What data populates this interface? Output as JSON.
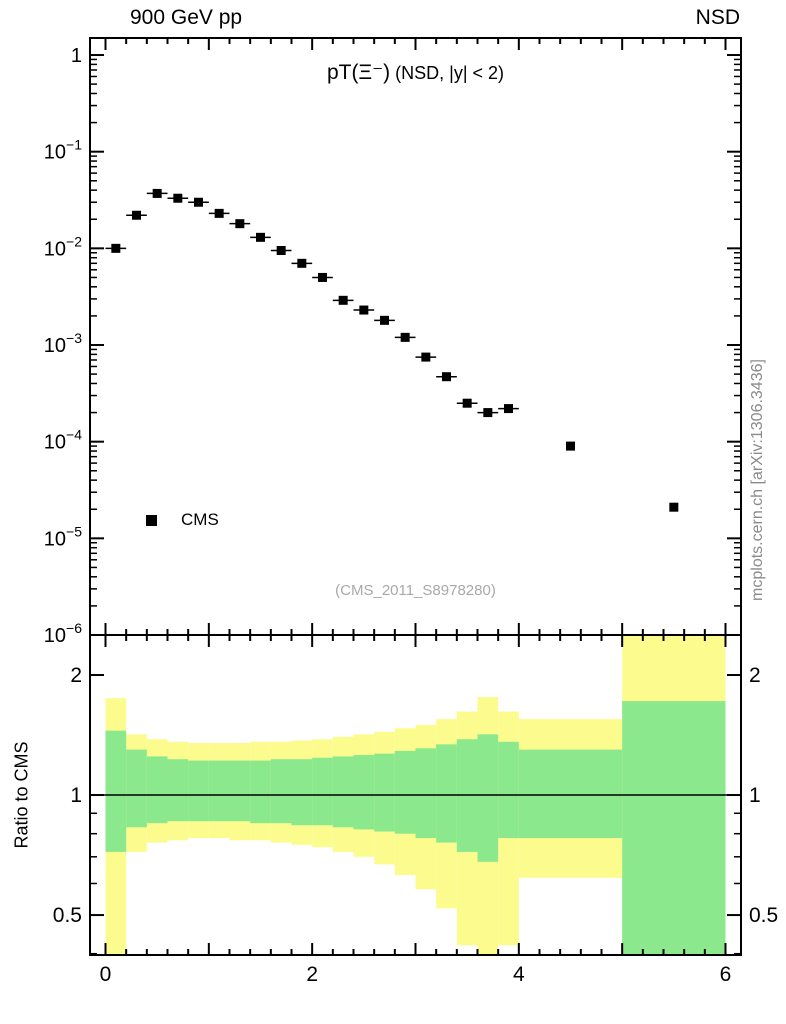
{
  "header": {
    "left": "900 GeV pp",
    "right": "NSD"
  },
  "main_panel": {
    "title_primary": "pT(Ξ⁻)",
    "title_secondary": " (NSD, |y| < 2)",
    "legend_label": "CMS",
    "watermark": "(CMS_2011_S8978280)"
  },
  "side_label": "mcplots.cern.ch [arXiv:1306.3436]",
  "ratio_ylabel": "Ratio to CMS",
  "colors": {
    "marker": "#000000",
    "band_outer": "#fbfb8e",
    "band_inner": "#8ce88c",
    "frame": "#000000",
    "watermark": "#a9a9a9",
    "side_label": "#8a8a8a"
  },
  "chart_data": [
    {
      "type": "scatter",
      "panel": "main",
      "title": "pT(Ξ⁻) (NSD, |y| < 2)",
      "xscale": "linear",
      "yscale": "log",
      "xlim": [
        -0.15,
        6.15
      ],
      "ylim": [
        1e-06,
        1.5
      ],
      "x_labeled_ticks": [
        {
          "v": 0,
          "label": "0"
        },
        {
          "v": 2,
          "label": "2"
        },
        {
          "v": 4,
          "label": "4"
        },
        {
          "v": 6,
          "label": "6"
        }
      ],
      "y_ticks": [
        {
          "v": 1,
          "label": "1"
        },
        {
          "v": 0.1,
          "label": "10^−1"
        },
        {
          "v": 0.01,
          "label": "10^−2"
        },
        {
          "v": 0.001,
          "label": "10^−3"
        },
        {
          "v": 0.0001,
          "label": "10^−4"
        },
        {
          "v": 1e-05,
          "label": "10^−5"
        },
        {
          "v": 1e-06,
          "label": "10^−6"
        }
      ],
      "series": [
        {
          "name": "CMS",
          "marker": "filled-square",
          "color": "#000000",
          "x": [
            0.1,
            0.3,
            0.5,
            0.7,
            0.9,
            1.1,
            1.3,
            1.5,
            1.7,
            1.9,
            2.1,
            2.3,
            2.5,
            2.7,
            2.9,
            3.1,
            3.3,
            3.5,
            3.7,
            3.9,
            4.5,
            5.5
          ],
          "y": [
            0.01,
            0.022,
            0.037,
            0.033,
            0.03,
            0.023,
            0.018,
            0.013,
            0.0095,
            0.007,
            0.005,
            0.0029,
            0.0023,
            0.0018,
            0.0012,
            0.00075,
            0.00047,
            0.00025,
            0.0002,
            0.00022,
            9e-05,
            2.1e-05
          ],
          "xerr": [
            0.1,
            0.1,
            0.1,
            0.1,
            0.1,
            0.1,
            0.1,
            0.1,
            0.1,
            0.1,
            0.1,
            0.1,
            0.1,
            0.1,
            0.1,
            0.1,
            0.1,
            0.1,
            0.1,
            0.1,
            0,
            0
          ]
        }
      ]
    },
    {
      "type": "area",
      "panel": "ratio",
      "ylabel": "Ratio to CMS",
      "yscale": "log",
      "xlim": [
        -0.15,
        6.15
      ],
      "ylim": [
        0.397,
        2.52
      ],
      "reference_line": 1,
      "y_ticks": [
        {
          "v": 0.5,
          "label": "0.5"
        },
        {
          "v": 1,
          "label": "1"
        },
        {
          "v": 2,
          "label": "2"
        }
      ],
      "y_minor_ticks": [
        0.4,
        0.6,
        0.7,
        0.8,
        0.9
      ],
      "bin_edges": [
        0,
        0.2,
        0.4,
        0.6,
        0.8,
        1.0,
        1.2,
        1.4,
        1.6,
        1.8,
        2.0,
        2.2,
        2.4,
        2.6,
        2.8,
        3.0,
        3.2,
        3.4,
        3.6,
        3.8,
        4.0,
        5.0,
        6.0
      ],
      "bands": [
        {
          "name": "outer-uncertainty",
          "color": "#fbfb8e",
          "lo": [
            0.38,
            0.72,
            0.76,
            0.77,
            0.78,
            0.78,
            0.77,
            0.77,
            0.76,
            0.75,
            0.74,
            0.72,
            0.7,
            0.67,
            0.63,
            0.58,
            0.52,
            0.42,
            0.38,
            0.42,
            0.62,
            0.3
          ],
          "hi": [
            1.75,
            1.42,
            1.38,
            1.36,
            1.35,
            1.35,
            1.35,
            1.36,
            1.36,
            1.37,
            1.38,
            1.4,
            1.42,
            1.44,
            1.47,
            1.5,
            1.55,
            1.62,
            1.76,
            1.62,
            1.55,
            2.6
          ]
        },
        {
          "name": "inner-uncertainty",
          "color": "#8ce88c",
          "lo": [
            0.72,
            0.83,
            0.85,
            0.86,
            0.86,
            0.86,
            0.86,
            0.85,
            0.85,
            0.84,
            0.84,
            0.83,
            0.82,
            0.81,
            0.8,
            0.78,
            0.76,
            0.72,
            0.68,
            0.78,
            0.78,
            0.3
          ],
          "hi": [
            1.45,
            1.3,
            1.25,
            1.23,
            1.22,
            1.22,
            1.22,
            1.22,
            1.23,
            1.23,
            1.24,
            1.25,
            1.26,
            1.27,
            1.29,
            1.31,
            1.34,
            1.38,
            1.42,
            1.36,
            1.3,
            1.72
          ]
        }
      ]
    }
  ]
}
